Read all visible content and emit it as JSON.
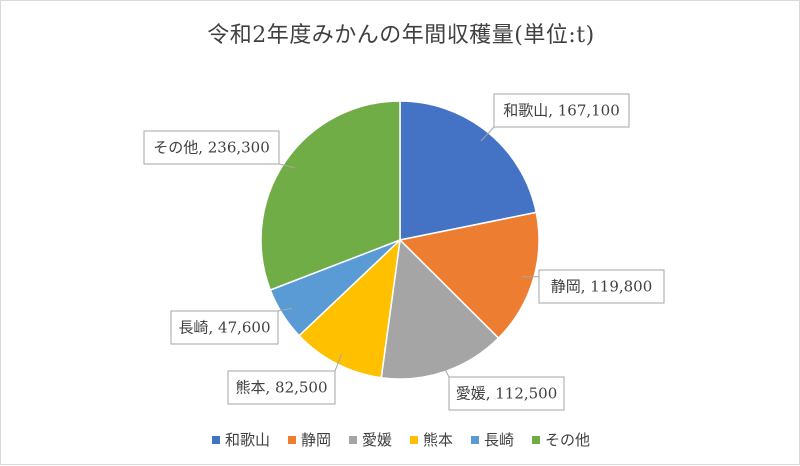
{
  "chart_data": {
    "type": "pie",
    "title": "令和2年度みかんの年間収穫量(単位:t)",
    "categories": [
      "和歌山",
      "静岡",
      "愛媛",
      "熊本",
      "長崎",
      "その他"
    ],
    "values": [
      167100,
      119800,
      112500,
      82500,
      47600,
      236300
    ],
    "data_labels": [
      "和歌山, 167,100",
      "静岡, 119,800",
      "愛媛, 112,500",
      "熊本, 82,500",
      "長崎, 47,600",
      "その他, 236,300"
    ],
    "colors": [
      "#4472C4",
      "#ED7D31",
      "#A5A5A5",
      "#FFC000",
      "#5B9BD5",
      "#70AD47"
    ],
    "legend_position": "bottom",
    "start_angle": "12 o'clock, clockwise"
  }
}
